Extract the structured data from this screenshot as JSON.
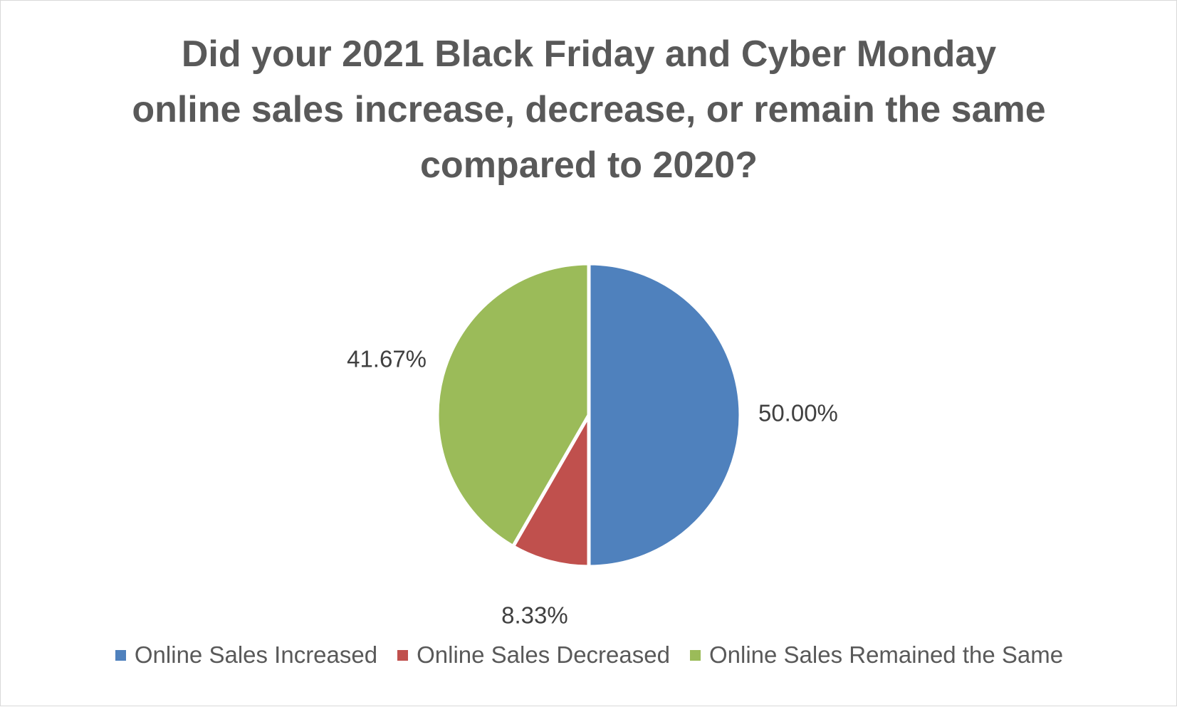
{
  "chart_data": {
    "type": "pie",
    "title": "Did your 2021 Black Friday and Cyber Monday online sales increase, decrease, or remain the same compared to 2020?",
    "categories": [
      "Online Sales Increased",
      "Online Sales Decreased",
      "Online Sales Remained the Same"
    ],
    "values": [
      50,
      8.33,
      41.67
    ],
    "value_labels": [
      "50.00%",
      "8.33%",
      "41.67%"
    ],
    "colors": [
      "#4f81bd",
      "#c0504d",
      "#9bbb59"
    ],
    "legend": "bottom"
  }
}
